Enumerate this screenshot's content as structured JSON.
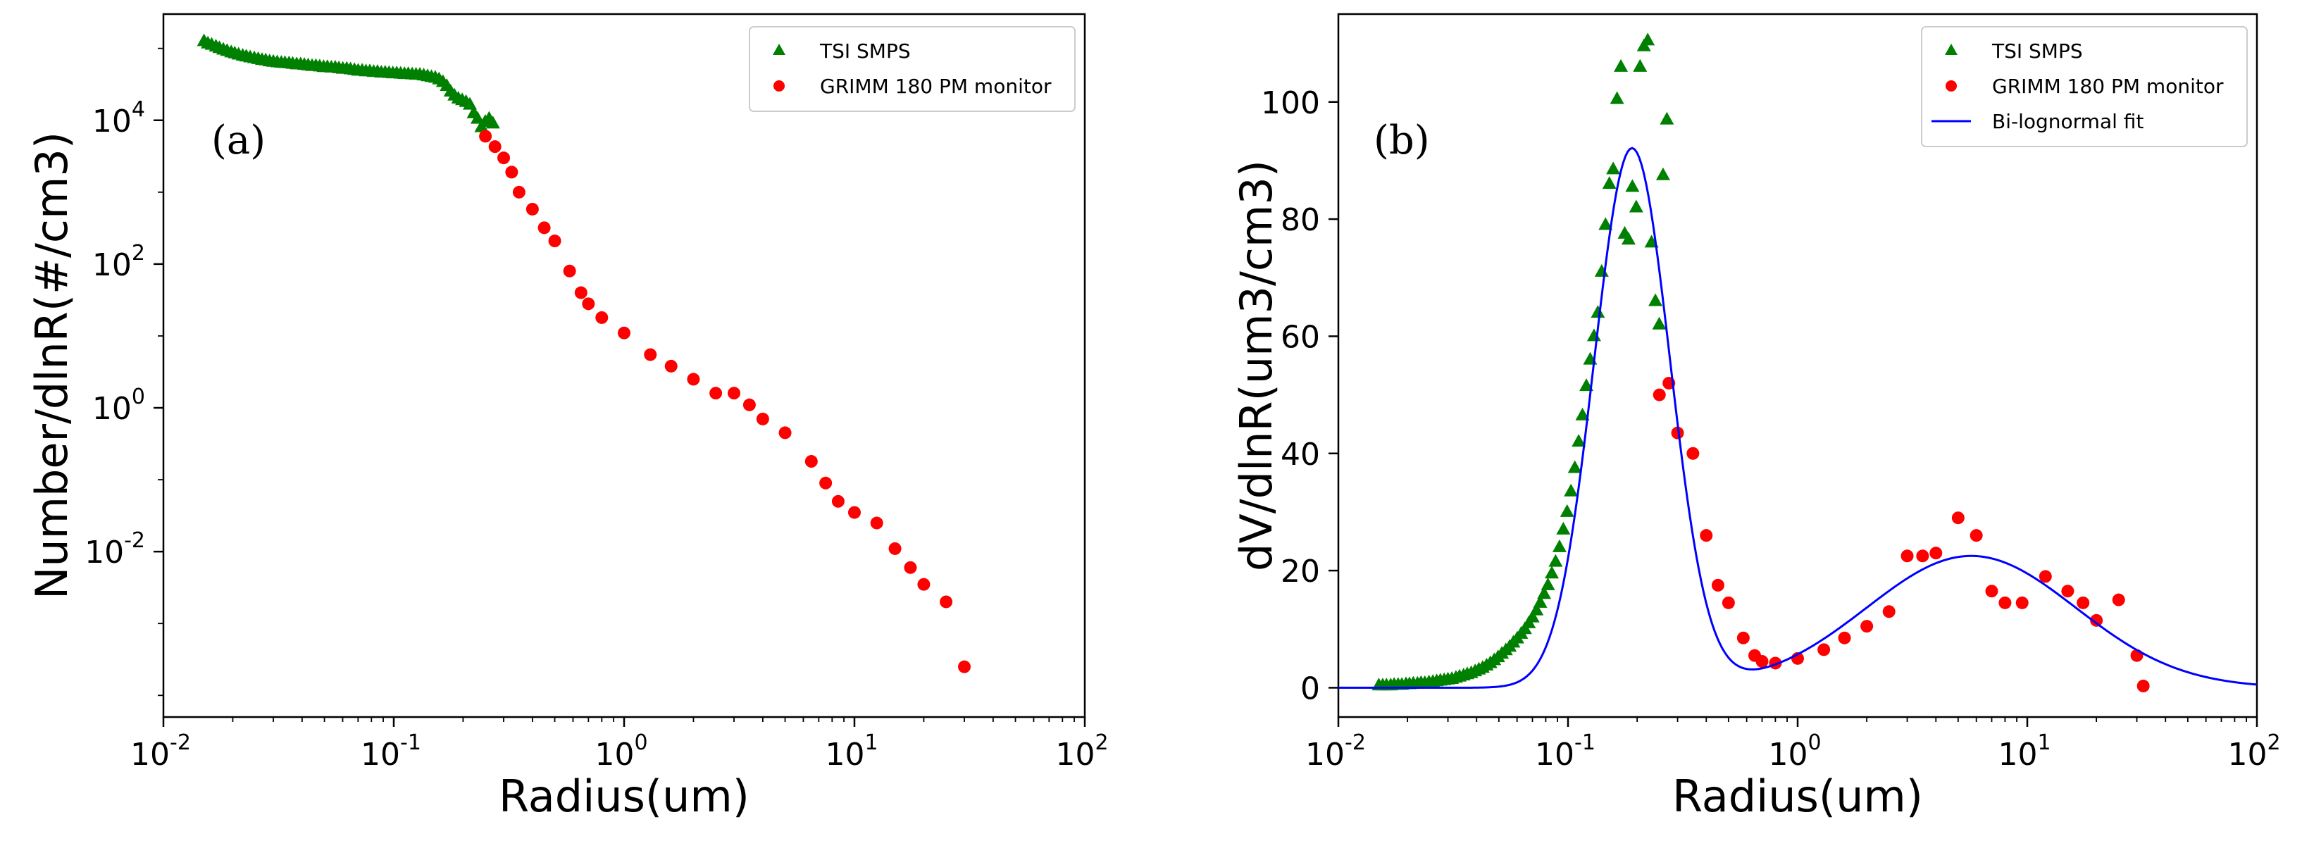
{
  "chart_data": [
    {
      "type": "scatter",
      "panel_label": "(a)",
      "xlabel": "Radius(um)",
      "ylabel": "Number/dlnR(#/cm3)",
      "xscale": "log",
      "yscale": "log",
      "xlim": [
        0.01,
        100
      ],
      "ylim": [
        5e-05,
        300000
      ],
      "xticks": [
        {
          "base": "10",
          "exp": "-2",
          "value": 0.01
        },
        {
          "base": "10",
          "exp": "-1",
          "value": 0.1
        },
        {
          "base": "10",
          "exp": "0",
          "value": 1
        },
        {
          "base": "10",
          "exp": "1",
          "value": 10
        },
        {
          "base": "10",
          "exp": "2",
          "value": 100
        }
      ],
      "yticks": [
        {
          "base": "10",
          "exp": "-2",
          "value": 0.01
        },
        {
          "base": "10",
          "exp": "0",
          "value": 1
        },
        {
          "base": "10",
          "exp": "2",
          "value": 100
        },
        {
          "base": "10",
          "exp": "4",
          "value": 10000
        }
      ],
      "legend_position": "top-right",
      "series": [
        {
          "name": "TSI SMPS",
          "marker": "triangle",
          "color": "#008000",
          "points": [
            [
              0.015,
              126000
            ],
            [
              0.0156,
              117000
            ],
            [
              0.0162,
              112000
            ],
            [
              0.0169,
              106000
            ],
            [
              0.0175,
              101000
            ],
            [
              0.0182,
              96000
            ],
            [
              0.0189,
              92000
            ],
            [
              0.0197,
              88000
            ],
            [
              0.0204,
              85000
            ],
            [
              0.0212,
              82000
            ],
            [
              0.0221,
              79000
            ],
            [
              0.0229,
              77000
            ],
            [
              0.0238,
              75000
            ],
            [
              0.0248,
              73000
            ],
            [
              0.0258,
              71000
            ],
            [
              0.0268,
              69000
            ],
            [
              0.0278,
              68000
            ],
            [
              0.0289,
              66000
            ],
            [
              0.03,
              65000
            ],
            [
              0.0312,
              64000
            ],
            [
              0.0325,
              63000
            ],
            [
              0.0337,
              62500
            ],
            [
              0.0351,
              62000
            ],
            [
              0.0364,
              61000
            ],
            [
              0.0379,
              60000
            ],
            [
              0.0394,
              60000
            ],
            [
              0.0409,
              59000
            ],
            [
              0.0425,
              58000
            ],
            [
              0.0442,
              57000
            ],
            [
              0.0459,
              57000
            ],
            [
              0.0477,
              56000
            ],
            [
              0.0496,
              55000
            ],
            [
              0.0515,
              55000
            ],
            [
              0.0536,
              54000
            ],
            [
              0.0557,
              54000
            ],
            [
              0.0578,
              53000
            ],
            [
              0.0601,
              52000
            ],
            [
              0.0625,
              52000
            ],
            [
              0.0649,
              51000
            ],
            [
              0.0675,
              50000
            ],
            [
              0.0701,
              49000
            ],
            [
              0.0729,
              49000
            ],
            [
              0.0757,
              48000
            ],
            [
              0.0787,
              48000
            ],
            [
              0.0818,
              47000
            ],
            [
              0.085,
              47000
            ],
            [
              0.0883,
              46000
            ],
            [
              0.0918,
              46000
            ],
            [
              0.0954,
              45500
            ],
            [
              0.0991,
              45000
            ],
            [
              0.103,
              45000
            ],
            [
              0.1071,
              44500
            ],
            [
              0.1113,
              44000
            ],
            [
              0.1156,
              44000
            ],
            [
              0.1202,
              43500
            ],
            [
              0.1249,
              43000
            ],
            [
              0.1298,
              43000
            ],
            [
              0.1349,
              42000
            ],
            [
              0.1402,
              41000
            ],
            [
              0.1457,
              40000
            ],
            [
              0.1514,
              39000
            ],
            [
              0.1573,
              37000
            ],
            [
              0.1635,
              34000
            ],
            [
              0.1699,
              30000
            ],
            [
              0.1766,
              25000
            ],
            [
              0.1835,
              22000
            ],
            [
              0.1907,
              20000
            ],
            [
              0.1982,
              19000
            ],
            [
              0.2059,
              18000
            ],
            [
              0.214,
              16500
            ],
            [
              0.2224,
              12500
            ],
            [
              0.2311,
              10500
            ],
            [
              0.2402,
              8000
            ],
            [
              0.2496,
              9500
            ],
            [
              0.2594,
              10500
            ],
            [
              0.2695,
              9000
            ]
          ]
        },
        {
          "name": "GRIMM 180 PM monitor",
          "marker": "circle",
          "color": "#ff0000",
          "points": [
            [
              0.25,
              6000
            ],
            [
              0.275,
              4300
            ],
            [
              0.3,
              3000
            ],
            [
              0.325,
              1900
            ],
            [
              0.35,
              1000
            ],
            [
              0.4,
              580
            ],
            [
              0.45,
              320
            ],
            [
              0.5,
              210
            ],
            [
              0.58,
              80
            ],
            [
              0.65,
              40
            ],
            [
              0.7,
              28
            ],
            [
              0.8,
              18
            ],
            [
              1.0,
              11
            ],
            [
              1.3,
              5.5
            ],
            [
              1.6,
              3.8
            ],
            [
              2.0,
              2.5
            ],
            [
              2.5,
              1.6
            ],
            [
              3.0,
              1.6
            ],
            [
              3.5,
              1.1
            ],
            [
              4.0,
              0.7
            ],
            [
              5.0,
              0.45
            ],
            [
              6.5,
              0.18
            ],
            [
              7.5,
              0.09
            ],
            [
              8.5,
              0.05
            ],
            [
              10.0,
              0.035
            ],
            [
              12.5,
              0.025
            ],
            [
              15.0,
              0.011
            ],
            [
              17.5,
              0.006
            ],
            [
              20.0,
              0.0035
            ],
            [
              25.0,
              0.002
            ],
            [
              30.0,
              0.00025
            ]
          ]
        }
      ]
    },
    {
      "type": "scatter",
      "panel_label": "(b)",
      "xlabel": "Radius(um)",
      "ylabel": "dV/dlnR(um3/cm3)",
      "xscale": "log",
      "yscale": "linear",
      "xlim": [
        0.01,
        100
      ],
      "ylim": [
        -5,
        115
      ],
      "xticks": [
        {
          "base": "10",
          "exp": "-2",
          "value": 0.01
        },
        {
          "base": "10",
          "exp": "-1",
          "value": 0.1
        },
        {
          "base": "10",
          "exp": "0",
          "value": 1
        },
        {
          "base": "10",
          "exp": "1",
          "value": 10
        },
        {
          "base": "10",
          "exp": "2",
          "value": 100
        }
      ],
      "yticks": [
        {
          "label": "0",
          "value": 0
        },
        {
          "label": "20",
          "value": 20
        },
        {
          "label": "40",
          "value": 40
        },
        {
          "label": "60",
          "value": 60
        },
        {
          "label": "80",
          "value": 80
        },
        {
          "label": "100",
          "value": 100
        }
      ],
      "legend_position": "top-right",
      "series": [
        {
          "name": "TSI SMPS",
          "marker": "triangle",
          "color": "#008000",
          "points": [
            [
              0.015,
              0.4
            ],
            [
              0.0156,
              0.4
            ],
            [
              0.0162,
              0.4
            ],
            [
              0.0169,
              0.4
            ],
            [
              0.0175,
              0.5
            ],
            [
              0.0182,
              0.5
            ],
            [
              0.0189,
              0.5
            ],
            [
              0.0197,
              0.6
            ],
            [
              0.0204,
              0.6
            ],
            [
              0.0212,
              0.7
            ],
            [
              0.0221,
              0.7
            ],
            [
              0.0229,
              0.8
            ],
            [
              0.0238,
              0.8
            ],
            [
              0.0248,
              0.9
            ],
            [
              0.0258,
              1.0
            ],
            [
              0.0268,
              1.1
            ],
            [
              0.0278,
              1.2
            ],
            [
              0.0289,
              1.3
            ],
            [
              0.03,
              1.4
            ],
            [
              0.0312,
              1.5
            ],
            [
              0.0325,
              1.7
            ],
            [
              0.0337,
              1.9
            ],
            [
              0.0351,
              2.1
            ],
            [
              0.0364,
              2.3
            ],
            [
              0.0379,
              2.5
            ],
            [
              0.0394,
              2.8
            ],
            [
              0.0409,
              3.1
            ],
            [
              0.0425,
              3.4
            ],
            [
              0.0442,
              3.8
            ],
            [
              0.0459,
              4.2
            ],
            [
              0.0477,
              4.7
            ],
            [
              0.0496,
              5.2
            ],
            [
              0.0515,
              5.8
            ],
            [
              0.0536,
              6.4
            ],
            [
              0.0557,
              7.0
            ],
            [
              0.0578,
              7.7
            ],
            [
              0.0601,
              8.4
            ],
            [
              0.0625,
              9.2
            ],
            [
              0.0649,
              10.0
            ],
            [
              0.0675,
              11.0
            ],
            [
              0.0701,
              12.0
            ],
            [
              0.0729,
              13.2
            ],
            [
              0.0757,
              14.5
            ],
            [
              0.0787,
              16.0
            ],
            [
              0.0818,
              17.5
            ],
            [
              0.085,
              19.5
            ],
            [
              0.0883,
              21.5
            ],
            [
              0.0918,
              24.0
            ],
            [
              0.0954,
              27.0
            ],
            [
              0.0991,
              30.0
            ],
            [
              0.103,
              33.5
            ],
            [
              0.1071,
              37.5
            ],
            [
              0.1113,
              42.0
            ],
            [
              0.1156,
              46.5
            ],
            [
              0.1202,
              51.5
            ],
            [
              0.1249,
              56.0
            ],
            [
              0.1298,
              60.0
            ],
            [
              0.1349,
              64.0
            ],
            [
              0.1402,
              71.0
            ],
            [
              0.1457,
              79.0
            ],
            [
              0.1514,
              86.0
            ],
            [
              0.1573,
              88.5
            ],
            [
              0.1635,
              100.5
            ],
            [
              0.1699,
              106.0
            ],
            [
              0.1766,
              77.5
            ],
            [
              0.1835,
              76.5
            ],
            [
              0.1907,
              85.5
            ],
            [
              0.1982,
              82.0
            ],
            [
              0.2059,
              106.0
            ],
            [
              0.214,
              109.5
            ],
            [
              0.2224,
              110.5
            ],
            [
              0.2311,
              76.0
            ],
            [
              0.2402,
              66.0
            ],
            [
              0.2496,
              62.0
            ],
            [
              0.2594,
              87.5
            ],
            [
              0.2695,
              97.0
            ]
          ]
        },
        {
          "name": "GRIMM 180 PM monitor",
          "marker": "circle",
          "color": "#ff0000",
          "points": [
            [
              0.25,
              50.0
            ],
            [
              0.275,
              52.0
            ],
            [
              0.3,
              43.5
            ],
            [
              0.35,
              40.0
            ],
            [
              0.4,
              26.0
            ],
            [
              0.45,
              17.5
            ],
            [
              0.5,
              14.5
            ],
            [
              0.58,
              8.5
            ],
            [
              0.65,
              5.5
            ],
            [
              0.7,
              4.5
            ],
            [
              0.8,
              4.2
            ],
            [
              1.0,
              5.0
            ],
            [
              1.3,
              6.5
            ],
            [
              1.6,
              8.5
            ],
            [
              2.0,
              10.5
            ],
            [
              2.5,
              13.0
            ],
            [
              3.0,
              22.5
            ],
            [
              3.5,
              22.5
            ],
            [
              4.0,
              23.0
            ],
            [
              5.0,
              29.0
            ],
            [
              6.0,
              26.0
            ],
            [
              7.0,
              16.5
            ],
            [
              8.0,
              14.5
            ],
            [
              9.5,
              14.5
            ],
            [
              12.0,
              19.0
            ],
            [
              15.0,
              16.5
            ],
            [
              17.5,
              14.5
            ],
            [
              20.0,
              11.5
            ],
            [
              25.0,
              15.0
            ],
            [
              30.0,
              5.5
            ],
            [
              32.0,
              0.3
            ]
          ]
        },
        {
          "name": "Bi-lognormal fit",
          "marker": "line",
          "color": "#0000ff",
          "modes": [
            {
              "peak": 92.0,
              "center": 0.19,
              "sigma": 0.38
            },
            {
              "peak": 22.5,
              "center": 5.7,
              "sigma": 1.05
            }
          ]
        }
      ]
    }
  ]
}
